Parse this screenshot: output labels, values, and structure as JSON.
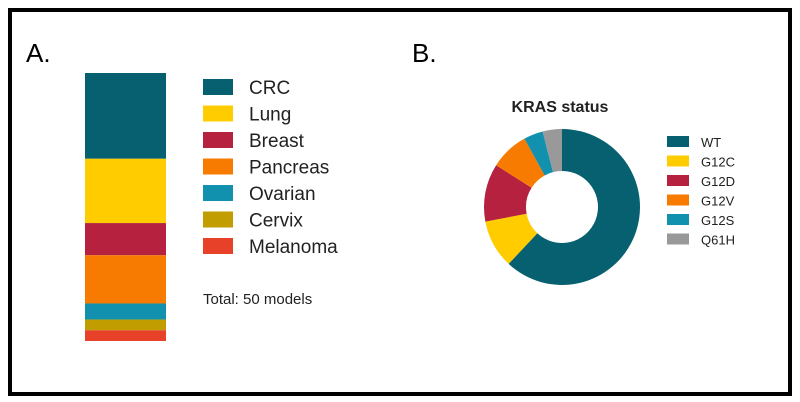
{
  "chart_data": [
    {
      "type": "bar",
      "stacked": true,
      "panel_label": "A.",
      "categories": [
        "CRC",
        "Lung",
        "Breast",
        "Pancreas",
        "Ovarian",
        "Cervix",
        "Melanoma"
      ],
      "values": [
        16,
        12,
        6,
        9,
        3,
        2,
        2
      ],
      "colors": [
        "#07606f",
        "#ffcc00",
        "#b5213e",
        "#f77b00",
        "#1191ad",
        "#c19d00",
        "#e8412a"
      ],
      "legend": "right",
      "annotation": "Total: 50 models"
    },
    {
      "type": "pie",
      "donut": true,
      "panel_label": "B.",
      "title": "KRAS status",
      "categories": [
        "WT",
        "G12C",
        "G12D",
        "G12V",
        "G12S",
        "Q61H"
      ],
      "values": [
        31,
        5,
        6,
        4,
        2,
        2
      ],
      "colors": [
        "#07606f",
        "#ffcc00",
        "#b5213e",
        "#f77b00",
        "#1191ad",
        "#999999"
      ],
      "legend": "right"
    }
  ]
}
